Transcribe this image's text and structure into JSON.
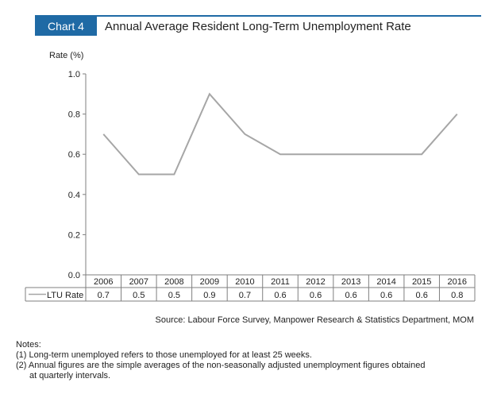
{
  "header": {
    "badge": "Chart 4",
    "title": "Annual Average Resident Long-Term Unemployment Rate"
  },
  "chart_data": {
    "type": "line",
    "title": "Annual Average Resident Long-Term Unemployment Rate",
    "ylabel": "Rate (%)",
    "xlabel": "",
    "ylim": [
      0,
      1.0
    ],
    "yticks": [
      "0.0",
      "0.2",
      "0.4",
      "0.6",
      "0.8",
      "1.0"
    ],
    "categories": [
      "2006",
      "2007",
      "2008",
      "2009",
      "2010",
      "2011",
      "2012",
      "2013",
      "2014",
      "2015",
      "2016"
    ],
    "series": [
      {
        "name": "LTU Rate",
        "values": [
          0.7,
          0.5,
          0.5,
          0.9,
          0.7,
          0.6,
          0.6,
          0.6,
          0.6,
          0.6,
          0.8
        ],
        "value_labels": [
          "0.7",
          "0.5",
          "0.5",
          "0.9",
          "0.7",
          "0.6",
          "0.6",
          "0.6",
          "0.6",
          "0.6",
          "0.8"
        ],
        "color": "#a6a6a6"
      }
    ],
    "grid": false,
    "legend": "data-table-left"
  },
  "footer": {
    "source": "Source: Labour Force Survey, Manpower Research & Statistics Department, MOM",
    "notes_heading": "Notes:",
    "note1": "(1) Long-term unemployed refers to those unemployed for at least 25 weeks.",
    "note2a": "(2) Annual figures are the simple averages of the non-seasonally adjusted unemployment figures obtained",
    "note2b": "at quarterly intervals."
  }
}
